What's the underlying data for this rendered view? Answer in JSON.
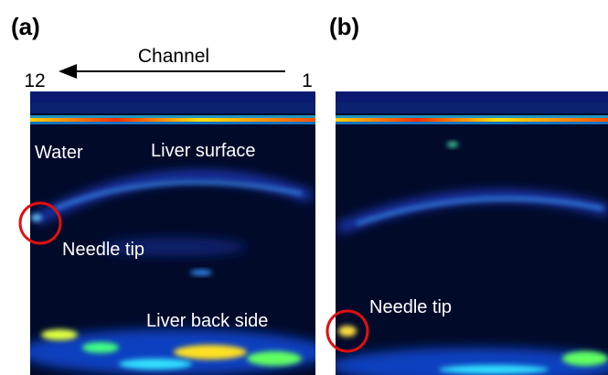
{
  "panels": [
    {
      "label": "(a)",
      "annotations": [
        "Water",
        "Liver surface",
        "Needle tip",
        "Liver back side"
      ]
    },
    {
      "label": "(b)",
      "annotations": [
        "Needle tip"
      ]
    }
  ],
  "channel_axis": {
    "title": "Channel",
    "start": "12",
    "end": "1"
  }
}
